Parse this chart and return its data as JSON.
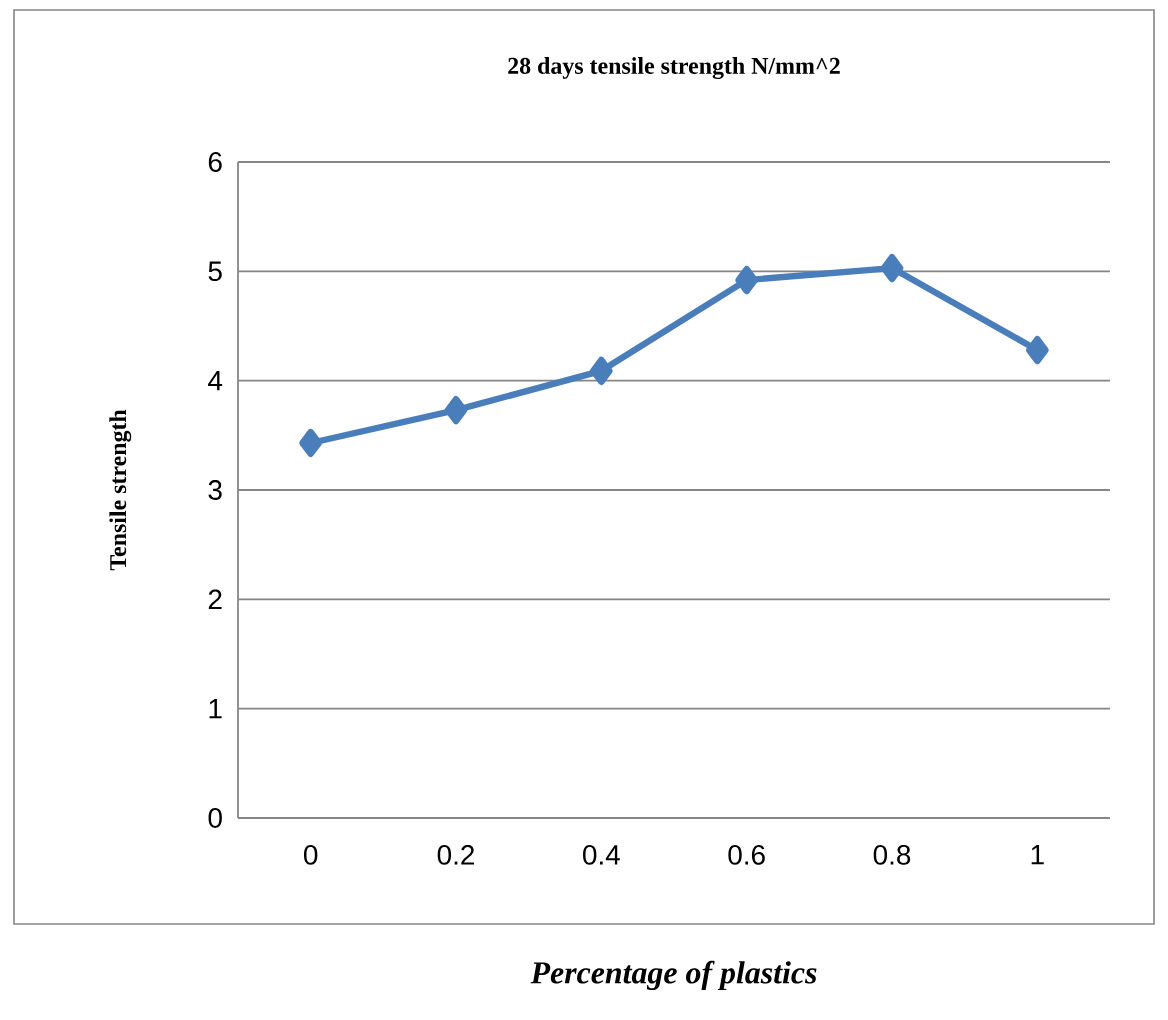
{
  "chart_data": {
    "type": "line",
    "title": "28 days tensile strength N/mm^2",
    "xlabel": "Percentage of plastics",
    "ylabel": "Tensile strength",
    "categories": [
      "0",
      "0.2",
      "0.4",
      "0.6",
      "0.8",
      "1"
    ],
    "series": [
      {
        "color": "#4a7ebb",
        "values": [
          3.43,
          3.73,
          4.09,
          4.92,
          5.03,
          4.28
        ]
      }
    ],
    "ylim": [
      0,
      6
    ],
    "yticks": [
      0,
      1,
      2,
      3,
      4,
      5,
      6
    ],
    "grid": "y",
    "marker": "diamond"
  }
}
